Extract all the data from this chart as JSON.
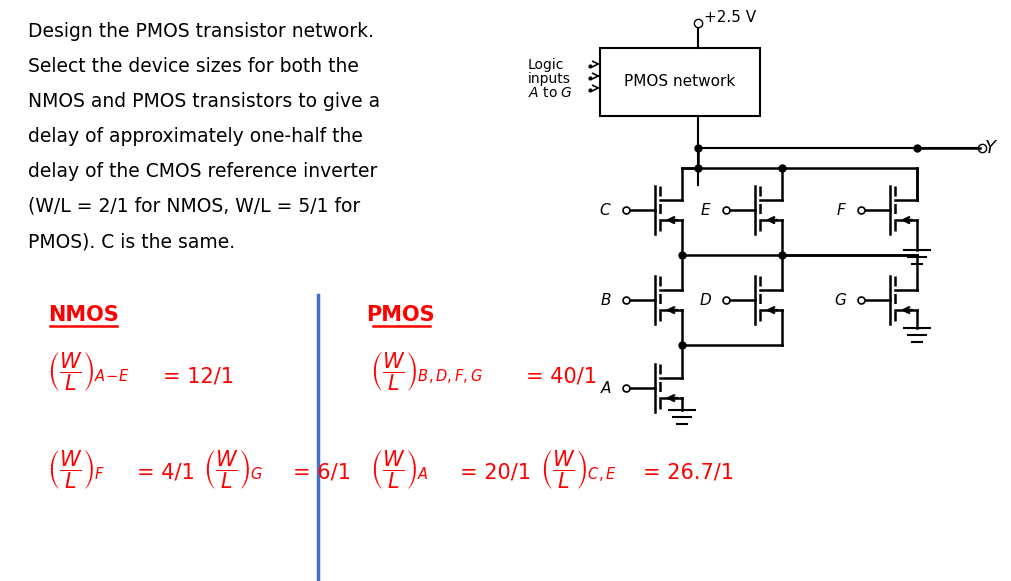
{
  "description_text": [
    "Design the PMOS transistor network.",
    "Select the device sizes for both the",
    "NMOS and PMOS transistors to give a",
    "delay of approximately one-half the",
    "delay of the CMOS reference inverter",
    "(W/L = 2/1 for NMOS, W/L = 5/1 for",
    "PMOS). C is the same."
  ],
  "nmos_label": "NMOS",
  "pmos_label": "PMOS",
  "red_color": "#FF0000",
  "blue_line_color": "#4472C4",
  "black": "#000000",
  "bg_color": "#FFFFFF",
  "text_color": "#000000",
  "box_label": "PMOS network",
  "vdd_label": "+2.5 V",
  "logic_line1": "Logic",
  "logic_line2": "inputs",
  "logic_line3": "A to G",
  "y_label": "Y"
}
